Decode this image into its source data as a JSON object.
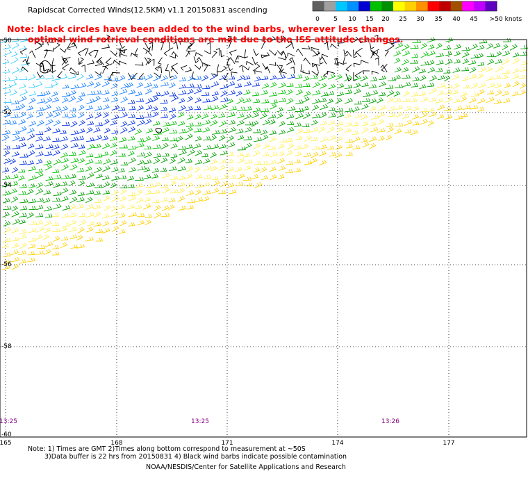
{
  "title": "Rapidscat Corrected Winds(12.5KM) v1.1 20150831 ascending",
  "note": {
    "line1": "Note: black circles have been added to the wind barbs, wherever less than",
    "line2": "optimal wind retrieval conditions are met due to the ISS attitude changes."
  },
  "colorbar": {
    "labels": [
      "0",
      "5",
      "10",
      "15",
      "20",
      "25",
      "30",
      "35",
      "40",
      "45",
      ">50 knots"
    ],
    "colors": [
      "#606060",
      "#a0a0a0",
      "#00c8ff",
      "#0090ff",
      "#0000d0",
      "#00c000",
      "#009000",
      "#ffff00",
      "#ffd000",
      "#ff9000",
      "#ff0000",
      "#c00000",
      "#a05000",
      "#ff00ff",
      "#c000ff",
      "#6000c0"
    ]
  },
  "map": {
    "lat_labels": [
      "-50",
      "-52",
      "-54",
      "-56",
      "-58",
      "-60"
    ],
    "lon_labels": [
      "165",
      "168",
      "171",
      "174",
      "177"
    ],
    "time_labels": [
      "13:25",
      "13:25",
      "13:26"
    ]
  },
  "footer": {
    "line1": "Note: 1) Times are GMT 2)Times along bottom correspond to measurement at ~50S",
    "line2": "3)Data buffer is 22 hrs from 20150831 4) Black wind barbs indicate possible contamination",
    "line3": "NOAA/NESDIS/Center for Satellite Applications and Research"
  }
}
